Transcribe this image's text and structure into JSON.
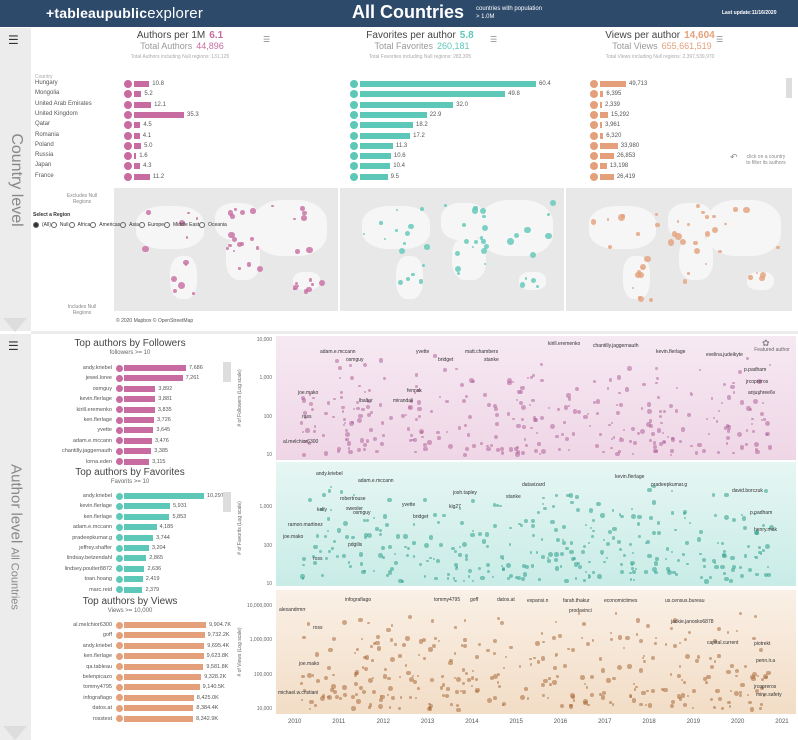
{
  "header": {
    "logo_a": "+tableau",
    "logo_b": "public",
    "logo_c": "explorer",
    "title": "All Countries",
    "note": "countries with population > 1.0M",
    "updated": "Last update:11/16/2020"
  },
  "colors": {
    "pink": "#c76ba0",
    "teal": "#5ec8b8",
    "orange": "#e4a07a",
    "header": "#2e4a6b"
  },
  "side": {
    "country_label": "Country level",
    "author_label": "Author level",
    "author_sub": "All Countries"
  },
  "metrics": [
    {
      "label": "Authors per 1M",
      "value": "6.1",
      "total_label": "Total Authors",
      "total": "44,896",
      "null_note": "Total Authors including Null regions: 131,125",
      "color": "#c76ba0"
    },
    {
      "label": "Favorites per author",
      "value": "5.8",
      "total_label": "Total Favorites",
      "total": "260,181",
      "null_note": "Total Favorites including Null regions: 283,305",
      "color": "#5ec8b8"
    },
    {
      "label": "Views per author",
      "value": "14,604",
      "total_label": "Total Views",
      "total": "655,661,519",
      "null_note": "Total Views including Null regions: 2,397,539,970",
      "color": "#e4a07a"
    }
  ],
  "countries": {
    "header": "Country",
    "names": [
      "Hungary",
      "Mongolia",
      "United Arab Emirates",
      "United Kingdom",
      "Qatar",
      "Romania",
      "Poland",
      "Russia",
      "Japan",
      "France"
    ],
    "authors": [
      10.8,
      5.2,
      12.1,
      35.3,
      4.5,
      4.1,
      5.0,
      1.6,
      4.3,
      11.2
    ],
    "authors_lbl": [
      "10.8",
      "5.2",
      "12.1",
      "35.3",
      "4.5",
      "4.1",
      "5.0",
      "1.6",
      "4.3",
      "11.2"
    ],
    "favorites": [
      60.4,
      49.8,
      32.0,
      22.9,
      18.2,
      17.2,
      11.3,
      10.6,
      10.4,
      9.5
    ],
    "favorites_lbl": [
      "60.4",
      "49.8",
      "32.0",
      "22.9",
      "18.2",
      "17.2",
      "11.3",
      "10.6",
      "10.4",
      "9.5"
    ],
    "views": [
      49713,
      6395,
      2339,
      15292,
      3961,
      6320,
      33980,
      26853,
      13198,
      26419
    ],
    "views_lbl": [
      "49,713",
      "6,395",
      "2,339",
      "15,292",
      "3,961",
      "6,320",
      "33,980",
      "26,853",
      "13,198",
      "26,419"
    ]
  },
  "hint": "click on a country to filter its authors",
  "maps": {
    "excludes": "Excludes Null Regions",
    "includes": "Includes Null Regions",
    "copyright": "© 2020 Mapbox  © OpenStreetMap"
  },
  "regions": {
    "title": "Select a Region",
    "items": [
      "(All)",
      "Null",
      "Africa",
      "Americas",
      "Asia",
      "Europe",
      "Middle East",
      "Oceania"
    ]
  },
  "top_followers": {
    "title": "Top authors by Followers",
    "sub": "followers >= 10",
    "names": [
      "andy.kriebel",
      "jewel.loree",
      "osmguy",
      "kevin.flerlage",
      "kirill.eremenko",
      "ken.flerlage",
      "yvette",
      "adam.e.mccann",
      "chantilly.jaggernauth",
      "lorna.eden"
    ],
    "values": [
      7686,
      7261,
      3892,
      3881,
      3835,
      3726,
      3645,
      3476,
      3385,
      3115
    ],
    "labels": [
      "7,686",
      "7,261",
      "3,892",
      "3,881",
      "3,835",
      "3,726",
      "3,645",
      "3,476",
      "3,385",
      "3,115"
    ]
  },
  "top_favorites": {
    "title": "Top authors by Favorites",
    "sub": "Favorits >= 10",
    "names": [
      "andy.kriebel",
      "kevin.flerlage",
      "ken.flerlage",
      "adam.e.mccann",
      "pradeepkumar.g",
      "jeffrey.shaffer",
      "lindsay.betzendahl",
      "lindsey.poulter8872",
      "toan.hoang",
      "marc.reid"
    ],
    "values": [
      10297,
      5931,
      5853,
      4185,
      3744,
      3204,
      2865,
      2636,
      2419,
      2379
    ],
    "labels": [
      "10,297",
      "5,931",
      "5,853",
      "4,185",
      "3,744",
      "3,204",
      "2,865",
      "2,636",
      "2,419",
      "2,379"
    ]
  },
  "top_views": {
    "title": "Top authors by Views",
    "sub": "Views >= 10,000",
    "names": [
      "al.melchior6300",
      "goff",
      "andy.kriebel",
      "ken.flerlage",
      "qa.tableau",
      "belenpicazo",
      "tommy4795",
      "infografiago",
      "datos.at",
      "rosstest"
    ],
    "values": [
      9904.7,
      9732.2,
      9695.4,
      9623.8,
      9581.8,
      9328.2,
      9140.5,
      8425.0,
      8384.4,
      8342.9
    ],
    "labels": [
      "9,904.7K",
      "9,732.2K",
      "9,695.4K",
      "9,623.8K",
      "9,581.8K",
      "9,328.2K",
      "9,140.5K",
      "8,425.0K",
      "8,384.4K",
      "8,342.9K"
    ]
  },
  "scatter": {
    "featured": "Featured author",
    "followers": {
      "axis": "# of Followers (Log scale)",
      "ticks": [
        "10,000",
        "1,000",
        "100",
        "10"
      ],
      "labels": [
        "kirill.eremenko",
        "adam.e.mccann",
        "chantilly.jaggernauth",
        "yvette",
        "matt.chambers",
        "kevin.flerlage",
        "osmguy",
        "bridget",
        "stanke",
        "evelina.judeikyte",
        "joe.mako",
        "fennsk",
        "lbaltor",
        "mirandali",
        "p.padham",
        "jrcopreros",
        "anjushree6v",
        "ross",
        "al.melchior6300"
      ]
    },
    "favorites": {
      "axis": "# of Favorits (Log scale)",
      "ticks": [
        "1,000",
        "100",
        "10"
      ],
      "labels": [
        "andy.kriebel",
        "kevin.flerlage",
        "adam.e.mccann",
        "pradeepkumar.g",
        "josh.tapley",
        "datavizard",
        "david.borczuk",
        "robertrouse",
        "stanke",
        "swexler",
        "klg27",
        "p.padham",
        "yvette",
        "kelly",
        "osmguy",
        "bridget",
        "ramon.martinez",
        "henry.mak",
        "joe.mako",
        "pdgilis",
        "ross"
      ]
    },
    "views": {
      "axis": "# of Views (Log scale)",
      "ticks": [
        "10,000,000",
        "1,000,000",
        "100,000",
        "10,000"
      ],
      "labels": [
        "infografiago",
        "tommy4795",
        "goff",
        "datos.at",
        "expansi.n",
        "farah.thakur",
        "economictimes",
        "us.census.bureau",
        "alexandrmrr",
        "prodavinci",
        "jackie.janosko6878",
        "ross",
        "capital.current",
        "piotrekt",
        "joe.mako",
        "penn.ir.a",
        "jrcopreros",
        "michael.w.cristiani",
        "mine.safety"
      ]
    },
    "years": [
      "2010",
      "2011",
      "2012",
      "2013",
      "2014",
      "2015",
      "2016",
      "2017",
      "2018",
      "2019",
      "2020",
      "2021"
    ]
  }
}
